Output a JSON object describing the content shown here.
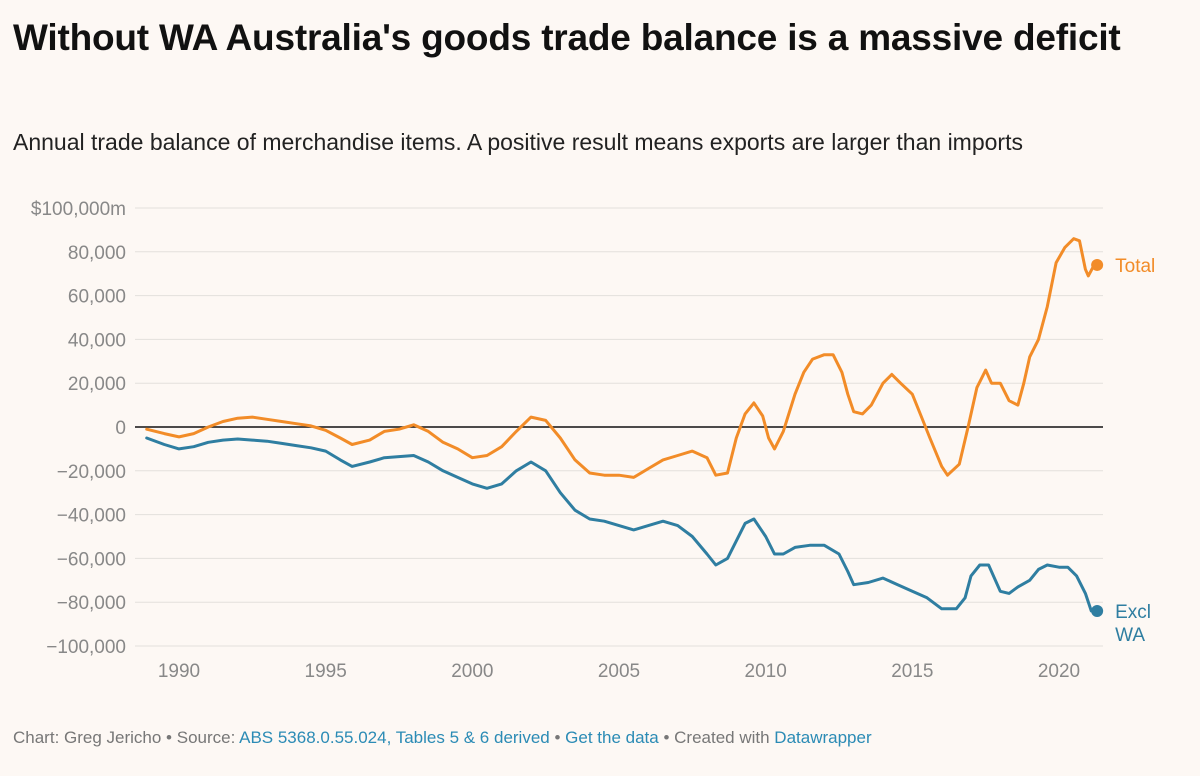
{
  "title": "Without WA Australia's goods trade balance is a massive deficit",
  "subtitle": "Annual trade balance of merchandise items. A positive result means exports are larger than imports",
  "footer": {
    "chart_prefix": "Chart: Greg Jericho • Source: ",
    "source_link": "ABS 5368.0.55.024, Tables 5 & 6 derived",
    "sep1": " • ",
    "data_link": "Get the data",
    "sep2": " • Created with ",
    "dw_link": "Datawrapper"
  },
  "chart_data": {
    "type": "line",
    "title": "Without WA Australia's goods trade balance is a massive deficit",
    "xlabel": "",
    "ylabel": "",
    "xlim": [
      1988.5,
      2021.5
    ],
    "ylim": [
      -100000,
      100000
    ],
    "y_ticks": [
      100000,
      80000,
      60000,
      40000,
      20000,
      0,
      -20000,
      -40000,
      -60000,
      -80000,
      -100000
    ],
    "y_tick_labels": [
      "$100,000m",
      "80,000",
      "60,000",
      "40,000",
      "20,000",
      "0",
      "−20,000",
      "−40,000",
      "−60,000",
      "−80,000",
      "−100,000"
    ],
    "x_ticks": [
      1990,
      1995,
      2000,
      2005,
      2010,
      2015,
      2020
    ],
    "x_tick_labels": [
      "1990",
      "1995",
      "2000",
      "2005",
      "2010",
      "2015",
      "2020"
    ],
    "grid": true,
    "series": [
      {
        "name": "Total",
        "color": "#f28c28",
        "points": [
          [
            1988.9,
            -1000
          ],
          [
            1989.5,
            -3000
          ],
          [
            1990.0,
            -4500
          ],
          [
            1990.5,
            -3000
          ],
          [
            1991.0,
            0
          ],
          [
            1991.5,
            2500
          ],
          [
            1992.0,
            4000
          ],
          [
            1992.5,
            4500
          ],
          [
            1993.0,
            3500
          ],
          [
            1993.5,
            2500
          ],
          [
            1994.0,
            1500
          ],
          [
            1994.5,
            500
          ],
          [
            1995.0,
            -1500
          ],
          [
            1995.5,
            -5000
          ],
          [
            1995.9,
            -8000
          ],
          [
            1996.5,
            -6000
          ],
          [
            1997.0,
            -2000
          ],
          [
            1997.5,
            -1000
          ],
          [
            1998.0,
            1000
          ],
          [
            1998.5,
            -2000
          ],
          [
            1999.0,
            -7000
          ],
          [
            1999.5,
            -10000
          ],
          [
            2000.0,
            -14000
          ],
          [
            2000.5,
            -13000
          ],
          [
            2001.0,
            -9000
          ],
          [
            2001.5,
            -2000
          ],
          [
            2002.0,
            4500
          ],
          [
            2002.5,
            3000
          ],
          [
            2003.0,
            -5000
          ],
          [
            2003.5,
            -15000
          ],
          [
            2004.0,
            -21000
          ],
          [
            2004.5,
            -22000
          ],
          [
            2005.0,
            -22000
          ],
          [
            2005.5,
            -23000
          ],
          [
            2006.0,
            -19000
          ],
          [
            2006.5,
            -15000
          ],
          [
            2007.0,
            -13000
          ],
          [
            2007.5,
            -11000
          ],
          [
            2008.0,
            -14000
          ],
          [
            2008.3,
            -22000
          ],
          [
            2008.7,
            -21000
          ],
          [
            2009.0,
            -5000
          ],
          [
            2009.3,
            6000
          ],
          [
            2009.6,
            11000
          ],
          [
            2009.9,
            5000
          ],
          [
            2010.1,
            -5000
          ],
          [
            2010.3,
            -10000
          ],
          [
            2010.6,
            -2000
          ],
          [
            2011.0,
            15000
          ],
          [
            2011.3,
            25000
          ],
          [
            2011.6,
            31000
          ],
          [
            2012.0,
            33000
          ],
          [
            2012.3,
            33000
          ],
          [
            2012.6,
            25000
          ],
          [
            2012.8,
            15000
          ],
          [
            2013.0,
            7000
          ],
          [
            2013.3,
            6000
          ],
          [
            2013.6,
            10000
          ],
          [
            2014.0,
            20000
          ],
          [
            2014.3,
            24000
          ],
          [
            2014.6,
            20000
          ],
          [
            2015.0,
            15000
          ],
          [
            2015.3,
            5000
          ],
          [
            2015.6,
            -5000
          ],
          [
            2016.0,
            -18000
          ],
          [
            2016.2,
            -22000
          ],
          [
            2016.6,
            -17000
          ],
          [
            2016.9,
            0
          ],
          [
            2017.2,
            18000
          ],
          [
            2017.5,
            26000
          ],
          [
            2017.7,
            20000
          ],
          [
            2018.0,
            20000
          ],
          [
            2018.3,
            12000
          ],
          [
            2018.6,
            10000
          ],
          [
            2018.8,
            20000
          ],
          [
            2019.0,
            32000
          ],
          [
            2019.3,
            40000
          ],
          [
            2019.6,
            55000
          ],
          [
            2019.9,
            75000
          ],
          [
            2020.2,
            82000
          ],
          [
            2020.5,
            86000
          ],
          [
            2020.7,
            85000
          ],
          [
            2020.9,
            72000
          ],
          [
            2021.0,
            69000
          ],
          [
            2021.2,
            74000
          ],
          [
            2021.3,
            74000
          ]
        ],
        "end_value": 74000
      },
      {
        "name": "Excl WA",
        "color": "#2f7ea1",
        "points": [
          [
            1988.9,
            -5000
          ],
          [
            1989.5,
            -8000
          ],
          [
            1990.0,
            -10000
          ],
          [
            1990.5,
            -9000
          ],
          [
            1991.0,
            -7000
          ],
          [
            1991.5,
            -6000
          ],
          [
            1992.0,
            -5500
          ],
          [
            1992.5,
            -6000
          ],
          [
            1993.0,
            -6500
          ],
          [
            1993.5,
            -7500
          ],
          [
            1994.0,
            -8500
          ],
          [
            1994.5,
            -9500
          ],
          [
            1995.0,
            -11000
          ],
          [
            1995.5,
            -15000
          ],
          [
            1995.9,
            -18000
          ],
          [
            1996.5,
            -16000
          ],
          [
            1997.0,
            -14000
          ],
          [
            1997.5,
            -13500
          ],
          [
            1998.0,
            -13000
          ],
          [
            1998.5,
            -16000
          ],
          [
            1999.0,
            -20000
          ],
          [
            1999.5,
            -23000
          ],
          [
            2000.0,
            -26000
          ],
          [
            2000.5,
            -28000
          ],
          [
            2001.0,
            -26000
          ],
          [
            2001.5,
            -20000
          ],
          [
            2002.0,
            -16000
          ],
          [
            2002.5,
            -20000
          ],
          [
            2003.0,
            -30000
          ],
          [
            2003.5,
            -38000
          ],
          [
            2004.0,
            -42000
          ],
          [
            2004.5,
            -43000
          ],
          [
            2005.0,
            -45000
          ],
          [
            2005.5,
            -47000
          ],
          [
            2006.0,
            -45000
          ],
          [
            2006.5,
            -43000
          ],
          [
            2007.0,
            -45000
          ],
          [
            2007.5,
            -50000
          ],
          [
            2008.0,
            -58000
          ],
          [
            2008.3,
            -63000
          ],
          [
            2008.7,
            -60000
          ],
          [
            2009.0,
            -52000
          ],
          [
            2009.3,
            -44000
          ],
          [
            2009.6,
            -42000
          ],
          [
            2010.0,
            -50000
          ],
          [
            2010.3,
            -58000
          ],
          [
            2010.6,
            -58000
          ],
          [
            2011.0,
            -55000
          ],
          [
            2011.5,
            -54000
          ],
          [
            2012.0,
            -54000
          ],
          [
            2012.5,
            -58000
          ],
          [
            2012.8,
            -66000
          ],
          [
            2013.0,
            -72000
          ],
          [
            2013.5,
            -71000
          ],
          [
            2014.0,
            -69000
          ],
          [
            2014.5,
            -72000
          ],
          [
            2015.0,
            -75000
          ],
          [
            2015.5,
            -78000
          ],
          [
            2016.0,
            -83000
          ],
          [
            2016.5,
            -83000
          ],
          [
            2016.8,
            -78000
          ],
          [
            2017.0,
            -68000
          ],
          [
            2017.3,
            -63000
          ],
          [
            2017.6,
            -63000
          ],
          [
            2018.0,
            -75000
          ],
          [
            2018.3,
            -76000
          ],
          [
            2018.6,
            -73000
          ],
          [
            2019.0,
            -70000
          ],
          [
            2019.3,
            -65000
          ],
          [
            2019.6,
            -63000
          ],
          [
            2020.0,
            -64000
          ],
          [
            2020.3,
            -64000
          ],
          [
            2020.6,
            -68000
          ],
          [
            2020.9,
            -76000
          ],
          [
            2021.1,
            -84000
          ],
          [
            2021.3,
            -84000
          ]
        ],
        "end_value": -84000
      }
    ]
  }
}
